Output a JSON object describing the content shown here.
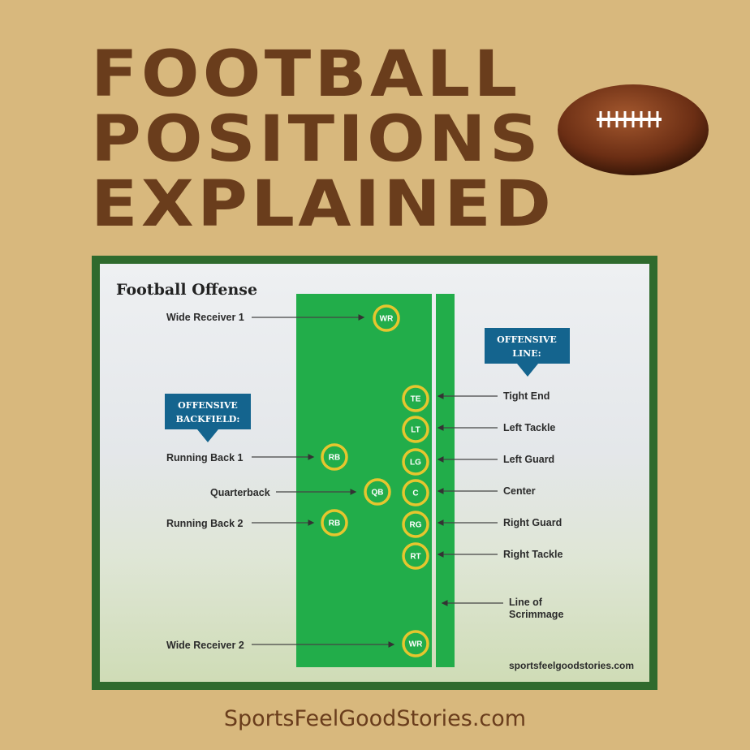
{
  "title_lines": [
    "FOOTBALL",
    "POSITIONS",
    "EXPLAINED"
  ],
  "diagram": {
    "heading": "Football Offense",
    "offensive_line_box": [
      "OFFENSIVE",
      "LINE:"
    ],
    "backfield_box": [
      "OFFENSIVE",
      "BACKFIELD:"
    ],
    "players": {
      "wr1": {
        "abbr": "WR",
        "label": "Wide Receiver 1"
      },
      "te": {
        "abbr": "TE",
        "label": "Tight End"
      },
      "lt": {
        "abbr": "LT",
        "label": "Left Tackle"
      },
      "lg": {
        "abbr": "LG",
        "label": "Left Guard"
      },
      "c": {
        "abbr": "C",
        "label": "Center"
      },
      "rg": {
        "abbr": "RG",
        "label": "Right Guard"
      },
      "rt": {
        "abbr": "RT",
        "label": "Right Tackle"
      },
      "rb1": {
        "abbr": "RB",
        "label": "Running Back 1"
      },
      "qb": {
        "abbr": "QB",
        "label": "Quarterback"
      },
      "rb2": {
        "abbr": "RB",
        "label": "Running Back 2"
      },
      "wr2": {
        "abbr": "WR",
        "label": "Wide Receiver 2"
      }
    },
    "scrimmage_label": [
      "Line of",
      "Scrimmage"
    ],
    "watermark": "sportsfeelgoodstories.com"
  },
  "footer": "SportsFeelGoodStories.com",
  "colors": {
    "background": "#d8b87d",
    "title": "#6a3d1c",
    "field": "#22ad4a",
    "ring": "#e6c62e",
    "box": "#14648e",
    "frame": "#2f6a2d"
  }
}
